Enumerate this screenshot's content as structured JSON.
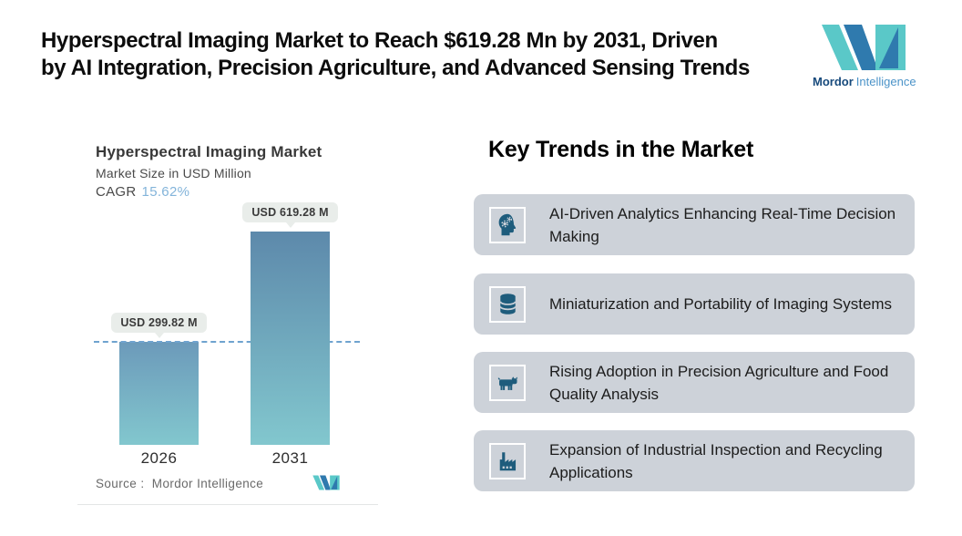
{
  "header": {
    "title_line1": "Hyperspectral Imaging Market to Reach $619.28 Mn by 2031, Driven",
    "title_line2": "by AI Integration, Precision Agriculture, and Advanced Sensing Trends"
  },
  "brand": {
    "bold": "Mordor",
    "light": "Intelligence"
  },
  "chart": {
    "title": "Hyperspectral Imaging Market",
    "subtitle": "Market Size in USD Million",
    "cagr_label": "CAGR",
    "cagr_value": "15.62%",
    "source_label": "Source :",
    "source_value": "Mordor Intelligence"
  },
  "chart_data": {
    "type": "bar",
    "title": "Hyperspectral Imaging Market",
    "ylabel": "Market Size in USD Million",
    "unit": "USD Million",
    "categories": [
      "2026",
      "2031"
    ],
    "values": [
      299.82,
      619.28
    ],
    "labels": [
      "USD 299.82 M",
      "USD 619.28 M"
    ],
    "cagr": "15.62%",
    "reference_line_at_value": 299.82,
    "grid": false,
    "legend": false,
    "bar_top_colors": [
      "#6c9aba",
      "#5d89ab"
    ],
    "bar_bottom_color": "#82c7ce"
  },
  "trends": {
    "heading": "Key Trends in the Market",
    "items": [
      {
        "icon": "ai-head-gears-icon",
        "text": "AI-Driven Analytics Enhancing Real-Time Decision Making"
      },
      {
        "icon": "database-icon",
        "text": "Miniaturization and Portability of Imaging Systems"
      },
      {
        "icon": "cow-icon",
        "text": "Rising Adoption in Precision Agriculture and Food Quality Analysis"
      },
      {
        "icon": "factory-icon",
        "text": "Expansion of Industrial Inspection and Recycling Applications"
      }
    ]
  },
  "colors": {
    "logo_teal": "#5ac8c8",
    "logo_blue": "#2f7aae",
    "brand_dark_blue": "#174a7c",
    "brand_light_blue": "#4b93c8",
    "card_background": "#cdd2d9",
    "icon_ink": "#1e5c7c",
    "dashed_line": "#6fa3cf",
    "pill_background": "#e9edea",
    "cagr_value_color": "#83b4da"
  }
}
